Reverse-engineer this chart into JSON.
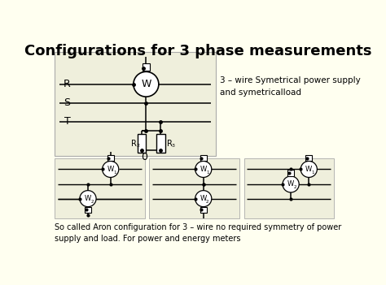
{
  "title": "Configurations for 3 phase measurements",
  "bg_color": "#FFFFF0",
  "panel_bg": "#F0F0E0",
  "title_fontsize": 13,
  "right_text": "3 – wire Symetrical power supply\nand symetricalload",
  "bottom_caption": "So called Aron configuration for 3 – wire no required symmetry of power\nsupply and load. For power and energy meters"
}
